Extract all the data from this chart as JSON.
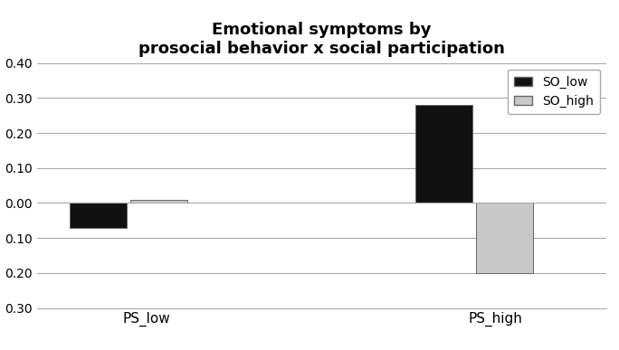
{
  "title_line1": "Emotional symptoms by",
  "title_line2": "prosocial behavior x social participation",
  "groups": [
    "PS_low",
    "PS_high"
  ],
  "series": [
    "SO_low",
    "SO_high"
  ],
  "values": {
    "PS_low": {
      "SO_low": -0.07,
      "SO_high": 0.01
    },
    "PS_high": {
      "SO_low": 0.28,
      "SO_high": -0.2
    }
  },
  "colors": {
    "SO_low": "#111111",
    "SO_high": "#c8c8c8"
  },
  "ylim": [
    -0.3,
    0.4
  ],
  "yticks": [
    -0.3,
    -0.2,
    -0.1,
    0.0,
    0.1,
    0.2,
    0.3,
    0.4
  ],
  "bar_width": 0.28,
  "group_centers": [
    0.75,
    2.45
  ],
  "title_fontsize": 13,
  "legend_fontsize": 10,
  "tick_fontsize": 10,
  "label_fontsize": 11,
  "background_color": "#ffffff",
  "edge_color": "#666666",
  "grid_color": "#aaaaaa",
  "spine_color": "#aaaaaa"
}
